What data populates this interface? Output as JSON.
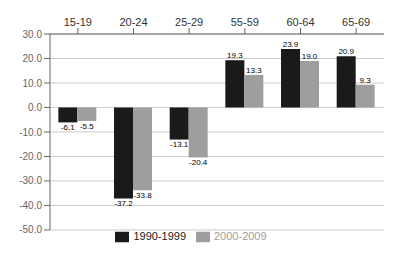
{
  "chart_data": {
    "type": "bar",
    "categories": [
      "15-19",
      "20-24",
      "25-29",
      "55-59",
      "60-64",
      "65-69"
    ],
    "series": [
      {
        "name": "1990-1999",
        "color": "#1a1a1a",
        "values": [
          -6.1,
          -37.2,
          -13.1,
          19.3,
          23.9,
          20.9
        ],
        "value_labels": [
          "-6.1",
          "-37.2",
          "-13.1",
          "19.3",
          "23.9",
          "20.9"
        ]
      },
      {
        "name": "2000-2009",
        "color": "#9e9e9e",
        "values": [
          -5.5,
          -33.8,
          -20.4,
          13.3,
          19.0,
          9.3
        ],
        "value_labels": [
          "-5.5",
          "-33.8",
          "-20.4",
          "13.3",
          "19.0",
          "9.3"
        ]
      }
    ],
    "ylim": [
      -50.0,
      30.0
    ],
    "yticks": [
      {
        "value": -50.0,
        "label": "-50.0"
      },
      {
        "value": -40.0,
        "label": "-40.0"
      },
      {
        "value": -30.0,
        "label": "-30.0"
      },
      {
        "value": -20.0,
        "label": "-20.0"
      },
      {
        "value": -10.0,
        "label": "-10.0"
      },
      {
        "value": 0.0,
        "label": "0.0"
      },
      {
        "value": 10.0,
        "label": "10.0"
      },
      {
        "value": 20.0,
        "label": "20.0"
      },
      {
        "value": 30.0,
        "label": "30.0"
      }
    ],
    "grid": true,
    "legend": "bottom",
    "data_labels": true
  }
}
